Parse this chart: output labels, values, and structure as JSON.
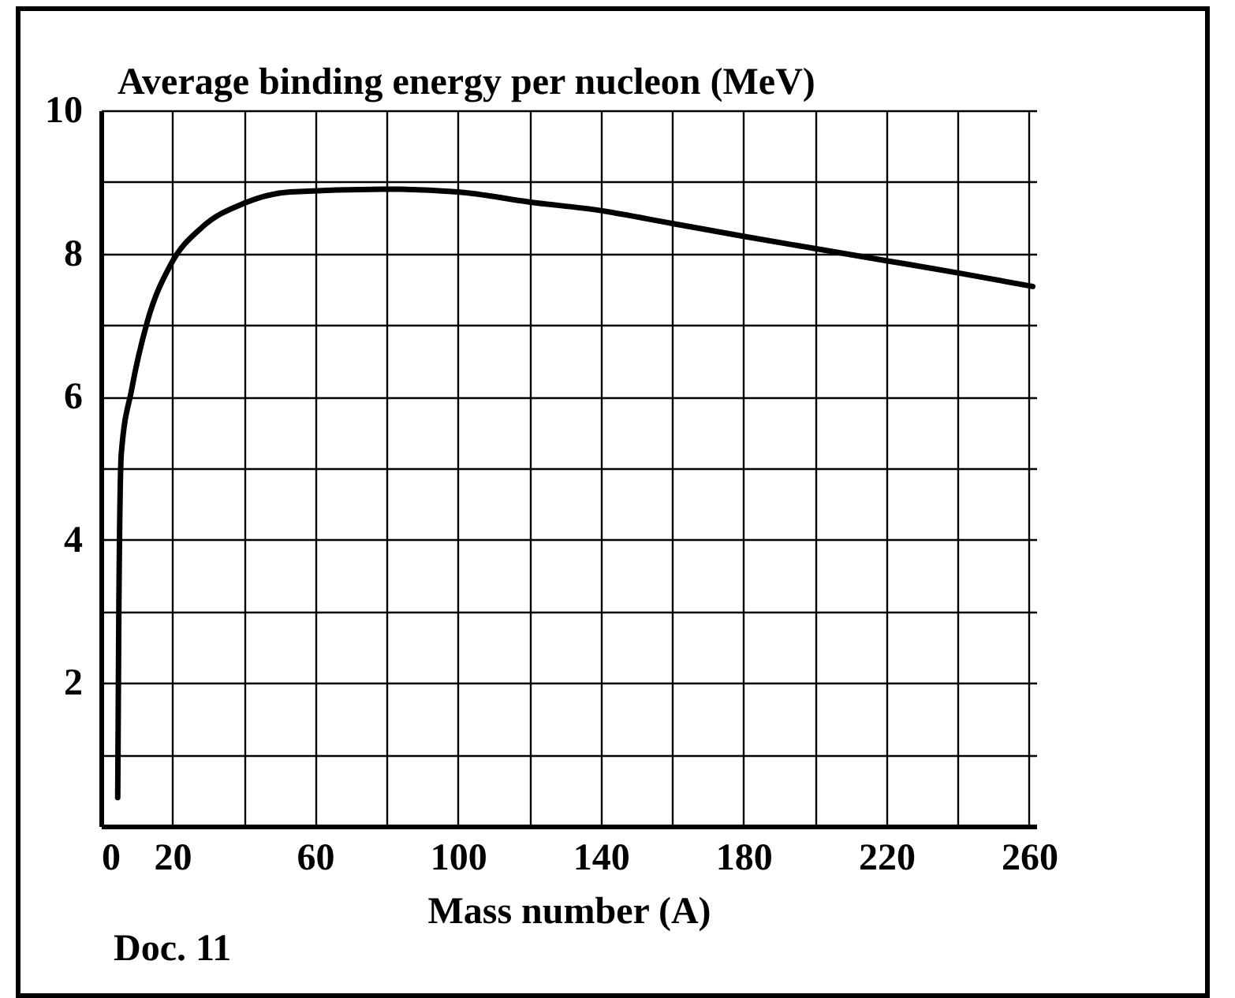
{
  "chart_data": {
    "type": "line",
    "ylabel": "Average binding energy per nucleon (MeV)",
    "xlabel": "Mass number (A)",
    "annotations": [
      "Doc. 11"
    ],
    "x": [
      4.7,
      5.0,
      5.7,
      8.6,
      13,
      19.6,
      28.4,
      40,
      53,
      79,
      100,
      120,
      140,
      160,
      180,
      200,
      220,
      240,
      261
    ],
    "series": [
      {
        "color": "#000000",
        "values": [
          0.4,
          2.9,
          5.2,
          6.1,
          7.05,
          7.85,
          8.37,
          8.7,
          8.86,
          8.9,
          8.86,
          8.72,
          8.6,
          8.42,
          8.24,
          8.07,
          7.9,
          7.73,
          7.54
        ]
      }
    ],
    "xlim": [
      0,
      262
    ],
    "ylim": [
      0,
      10
    ],
    "xticks": [
      0,
      20,
      {
        "value": 40,
        "label": null
      },
      60,
      {
        "value": 80,
        "label": null
      },
      100,
      {
        "value": 120,
        "label": null
      },
      140,
      {
        "value": 160,
        "label": null
      },
      180,
      {
        "value": 200,
        "label": null
      },
      220,
      {
        "value": 240,
        "label": null
      },
      260
    ],
    "yticks": [
      {
        "value": 1,
        "label": null
      },
      2,
      {
        "value": 3,
        "label": null
      },
      4,
      {
        "value": 5,
        "label": null
      },
      6,
      {
        "value": 7,
        "label": null
      },
      8,
      {
        "value": 9,
        "label": null
      },
      10
    ],
    "grid": true,
    "marker": "none",
    "line_style": "solid"
  }
}
